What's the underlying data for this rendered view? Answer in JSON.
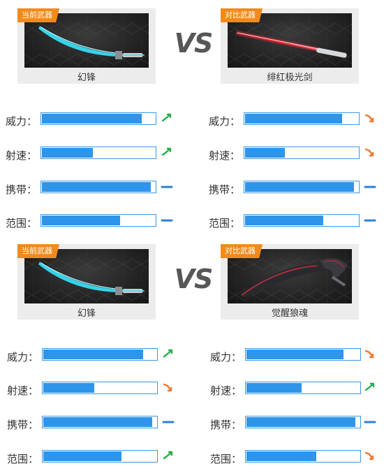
{
  "colors": {
    "badge": "#f08a1c",
    "bar": "#2f95ea",
    "up": "#24b04b",
    "down": "#f07830",
    "same": "#2f7fd6"
  },
  "comparisons": [
    {
      "vs_text": "VS",
      "left": {
        "badge": "当前武器",
        "name": "幻锋",
        "image": "cyan-blade-weapon",
        "stats": [
          {
            "label": "威力：",
            "value": 0.88,
            "trend": "up"
          },
          {
            "label": "射速：",
            "value": 0.45,
            "trend": "up"
          },
          {
            "label": "携带：",
            "value": 0.96,
            "trend": "same"
          },
          {
            "label": "范围：",
            "value": 0.69,
            "trend": "same"
          }
        ]
      },
      "right": {
        "badge": "对比武器",
        "name": "绯红极光剑",
        "image": "red-lightsaber-weapon",
        "stats": [
          {
            "label": "威力：",
            "value": 0.86,
            "trend": "down"
          },
          {
            "label": "射速：",
            "value": 0.35,
            "trend": "down"
          },
          {
            "label": "携带：",
            "value": 0.96,
            "trend": "same"
          },
          {
            "label": "范围：",
            "value": 0.69,
            "trend": "same"
          }
        ]
      }
    },
    {
      "vs_text": "VS",
      "left": {
        "badge": "当前武器",
        "name": "幻锋",
        "image": "cyan-blade-weapon",
        "stats": [
          {
            "label": "威力：",
            "value": 0.88,
            "trend": "up"
          },
          {
            "label": "射速：",
            "value": 0.45,
            "trend": "down"
          },
          {
            "label": "携带：",
            "value": 0.96,
            "trend": "same"
          },
          {
            "label": "范围：",
            "value": 0.69,
            "trend": "up"
          }
        ]
      },
      "right": {
        "badge": "对比武器",
        "name": "觉醒狼魂",
        "image": "dark-claw-weapon",
        "stats": [
          {
            "label": "威力：",
            "value": 0.86,
            "trend": "down"
          },
          {
            "label": "射速：",
            "value": 0.49,
            "trend": "up"
          },
          {
            "label": "携带：",
            "value": 0.96,
            "trend": "same"
          },
          {
            "label": "范围：",
            "value": 0.62,
            "trend": "down"
          }
        ]
      }
    }
  ]
}
